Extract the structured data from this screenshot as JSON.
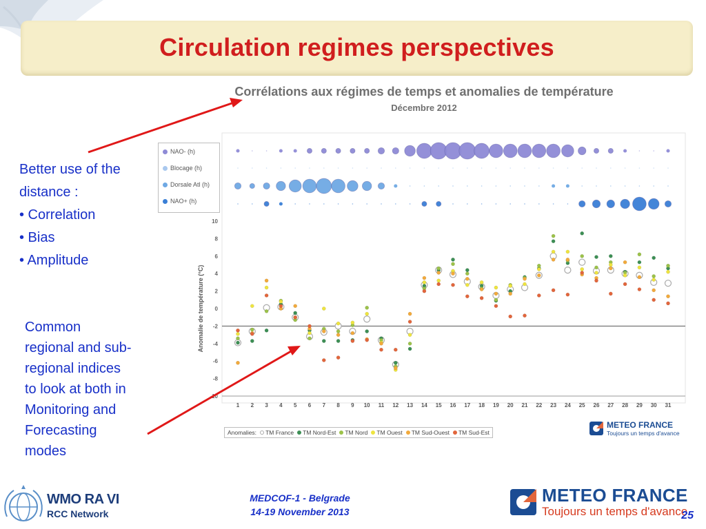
{
  "slide": {
    "title": "Circulation regimes perspectives",
    "side_points_1": [
      "Better use of the",
      "distance :",
      "• Correlation",
      "• Bias",
      "• Amplitude"
    ],
    "side_points_2": [
      "Common",
      "regional and sub-",
      "regional indices",
      "to look at both in",
      "Monitoring and",
      "Forecasting",
      "modes"
    ],
    "footer_event": "MEDCOF-1 - Belgrade",
    "footer_dates": "14-19 November 2013",
    "page_number": "25",
    "wmo_ravi": "WMO RA VI",
    "wmo_rcc": "RCC Network",
    "meteo_france_name": "METEO FRANCE",
    "meteo_france_tagline": "Toujours un temps d'avance"
  },
  "colors": {
    "title_red": "#d01e1e",
    "text_blue": "#1830c8",
    "arrow_red": "#e01818",
    "banner": "#f6eec9"
  },
  "chart_data": {
    "type": "scatter",
    "title": "Corrélations aux régimes de temps et anomalies de température",
    "subtitle": "Décembre 2012",
    "xlabel": "",
    "ylabel": "Anomalie de température (°C)",
    "x": [
      1,
      2,
      3,
      4,
      5,
      6,
      7,
      8,
      9,
      10,
      11,
      12,
      13,
      14,
      15,
      16,
      17,
      18,
      19,
      20,
      21,
      22,
      23,
      24,
      25,
      26,
      27,
      28,
      29,
      30,
      31
    ],
    "ylim": [
      -10,
      10
    ],
    "yticks": [
      10,
      8,
      6,
      4,
      2,
      0,
      -2,
      -4,
      -6,
      -8,
      -10
    ],
    "reference_line": -2,
    "grid": false,
    "regimes_legend_title": "",
    "regimes": [
      {
        "name": "NAO- (h)",
        "color": "#8f8bd6",
        "correlation": [
          0.1,
          0,
          0,
          0.1,
          0.1,
          0.2,
          0.2,
          0.2,
          0.2,
          0.2,
          0.3,
          0.3,
          0.6,
          0.9,
          1.0,
          1.0,
          1.0,
          0.9,
          0.8,
          0.8,
          0.8,
          0.8,
          0.8,
          0.7,
          0.4,
          0.2,
          0.2,
          0.1,
          0,
          0,
          0.1
        ]
      },
      {
        "name": "Blocage (h)",
        "color": "#a9c8ee",
        "correlation": [
          0,
          0,
          0,
          0,
          0,
          0,
          0,
          0,
          0,
          0,
          0,
          0,
          0,
          0,
          0,
          0,
          0,
          0,
          0,
          0,
          0,
          0,
          0,
          0,
          0,
          0,
          0,
          0,
          0,
          0,
          0
        ]
      },
      {
        "name": "Dorsale Atl (h)",
        "color": "#6fa9e4",
        "correlation": [
          0.3,
          0.2,
          0.3,
          0.5,
          0.7,
          0.8,
          0.9,
          0.8,
          0.6,
          0.5,
          0.3,
          0.1,
          0,
          0,
          0,
          0,
          0,
          0,
          0,
          0,
          0,
          0,
          0.1,
          0.1,
          0,
          0,
          0,
          0,
          0,
          0,
          0
        ]
      },
      {
        "name": "NAO+ (h)",
        "color": "#3a7fd6",
        "correlation": [
          0,
          0,
          0.2,
          0.1,
          0,
          0,
          0,
          0,
          0,
          0,
          0,
          0,
          0,
          0.2,
          0.2,
          0,
          0,
          0,
          0,
          0,
          0,
          0,
          0,
          0,
          0.3,
          0.4,
          0.4,
          0.5,
          0.8,
          0.6,
          0.3
        ]
      }
    ],
    "anomalies_label": "Anomalies:",
    "series": [
      {
        "name": "TM France",
        "color": "#c8c8c8",
        "outline": true,
        "values": [
          -3.9,
          -2.6,
          0.1,
          0.2,
          -1.0,
          -3.2,
          -2.7,
          -2.0,
          -2.6,
          -1.2,
          -3.6,
          -6.4,
          -2.6,
          2.7,
          4.4,
          3.9,
          3.1,
          2.5,
          1.5,
          2.2,
          2.4,
          3.8,
          6.0,
          4.4,
          5.3,
          4.3,
          4.4,
          4.0,
          3.8,
          3.0,
          2.9
        ]
      },
      {
        "name": "TM Nord-Est",
        "color": "#3d8f55",
        "values": [
          -3.9,
          -3.7,
          -2.5,
          0.5,
          -0.5,
          -2.5,
          -3.7,
          -3.7,
          -3.6,
          -2.6,
          -3.4,
          -6.2,
          -4.6,
          2.6,
          4.4,
          5.6,
          4.4,
          2.6,
          0.9,
          2.0,
          3.6,
          4.6,
          7.7,
          5.2,
          8.6,
          5.9,
          6.0,
          4.2,
          5.3,
          5.8,
          4.6
        ]
      },
      {
        "name": "TM Nord",
        "color": "#9cc24a",
        "values": [
          -3.4,
          -2.4,
          -0.3,
          0.9,
          -1.3,
          -3.4,
          -2.3,
          -2.6,
          -1.9,
          0.1,
          -3.6,
          -6.6,
          -4.0,
          2.3,
          4.6,
          5.1,
          4.0,
          2.3,
          1.0,
          2.7,
          3.5,
          4.9,
          8.3,
          5.5,
          6.0,
          4.7,
          5.3,
          4.1,
          6.2,
          3.7,
          4.9
        ]
      },
      {
        "name": "TM Ouest",
        "color": "#eee440",
        "values": [
          -2.9,
          0.3,
          2.4,
          0.8,
          -1.0,
          -2.8,
          0.0,
          -1.7,
          -1.6,
          -0.6,
          -3.9,
          -7.0,
          -3.0,
          3.0,
          3.2,
          4.3,
          2.7,
          3.0,
          2.4,
          2.6,
          2.8,
          4.5,
          6.5,
          6.5,
          4.5,
          4.1,
          5.0,
          3.8,
          4.7,
          3.3,
          4.2
        ]
      },
      {
        "name": "TM Sud-Ouest",
        "color": "#f2aa3c",
        "values": [
          -6.2,
          -2.8,
          3.2,
          0.0,
          0.3,
          -2.3,
          -2.6,
          -3.0,
          -2.8,
          -3.5,
          -4.0,
          -6.8,
          -0.6,
          3.5,
          4.1,
          4.0,
          3.4,
          2.2,
          1.7,
          1.7,
          3.4,
          3.8,
          5.6,
          5.6,
          3.9,
          3.5,
          4.6,
          5.3,
          3.6,
          2.1,
          1.4
        ]
      },
      {
        "name": "TM Sud-Est",
        "color": "#e2663c",
        "values": [
          -2.5,
          -2.9,
          1.5,
          0.3,
          -1.0,
          -2.0,
          -5.9,
          -5.6,
          -3.7,
          -3.6,
          -4.7,
          -4.7,
          -1.5,
          2.0,
          2.8,
          2.7,
          1.4,
          1.2,
          0.3,
          -0.9,
          -0.8,
          1.5,
          2.1,
          1.6,
          4.1,
          3.2,
          1.7,
          2.8,
          2.2,
          1.0,
          0.6
        ]
      }
    ]
  }
}
